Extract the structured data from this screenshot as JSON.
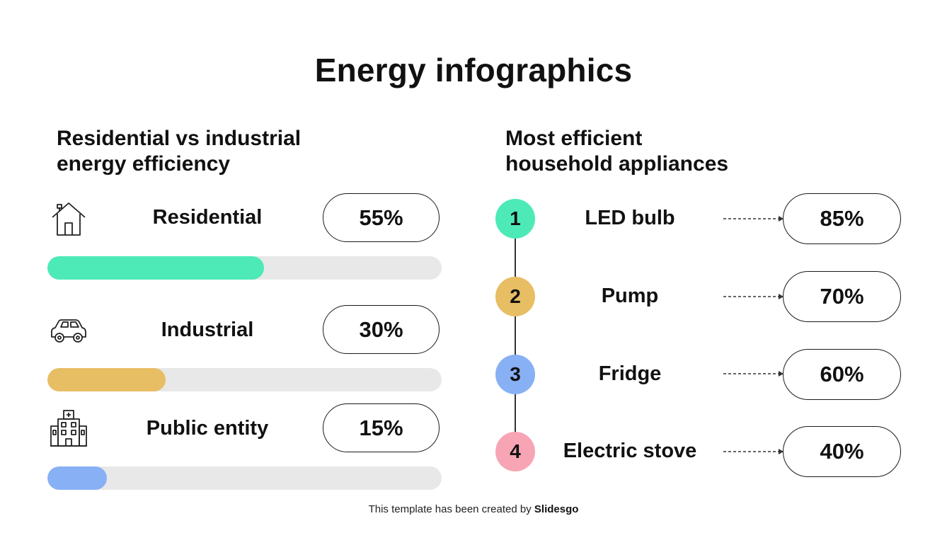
{
  "title": "Energy infographics",
  "left": {
    "heading": "Residential vs industrial\nenergy efficiency",
    "rows": [
      {
        "label": "Residential",
        "value_label": "55%",
        "icon": "house-icon"
      },
      {
        "label": "Industrial",
        "value_label": "30%",
        "icon": "car-icon"
      },
      {
        "label": "Public entity",
        "value_label": "15%",
        "icon": "building-icon"
      }
    ]
  },
  "right": {
    "heading": "Most efficient\nhousehold appliances",
    "items": [
      {
        "number": "1",
        "label": "LED bulb",
        "value_label": "85%"
      },
      {
        "number": "2",
        "label": "Pump",
        "value_label": "70%"
      },
      {
        "number": "3",
        "label": "Fridge",
        "value_label": "60%"
      },
      {
        "number": "4",
        "label": "Electric stove",
        "value_label": "40%"
      }
    ]
  },
  "colors": {
    "green": "#4deab7",
    "gold": "#e8be64",
    "blue": "#88b0f5",
    "pink": "#f7a5b5",
    "track": "#e8e8e8"
  },
  "chart_data": [
    {
      "type": "bar",
      "categories": [
        "Residential",
        "Industrial",
        "Public entity"
      ],
      "values": [
        55,
        30,
        15
      ],
      "ylim": [
        0,
        100
      ]
    },
    {
      "type": "table",
      "categories": [
        "LED bulb",
        "Pump",
        "Fridge",
        "Electric stove"
      ],
      "values": [
        85,
        70,
        60,
        40
      ]
    }
  ],
  "footer": {
    "prefix": "This template has been created by",
    "brand": "Slidesgo"
  }
}
